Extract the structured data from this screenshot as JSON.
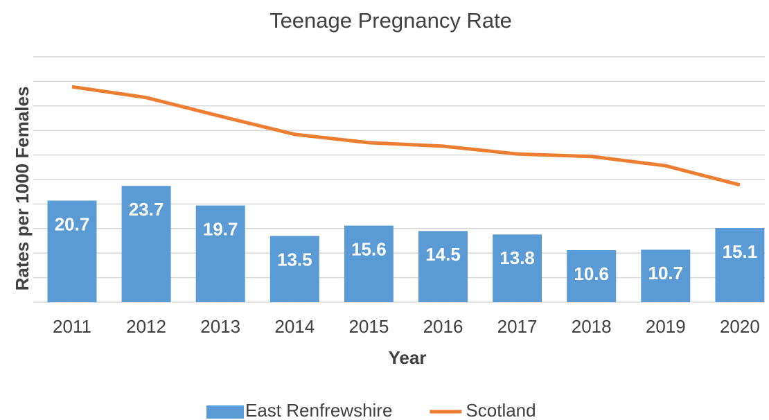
{
  "chart_data": {
    "type": "bar_line",
    "title": "Teenage Pregnancy Rate",
    "xlabel": "Year",
    "ylabel": "Rates per 1000 Females",
    "categories": [
      "2011",
      "2012",
      "2013",
      "2014",
      "2015",
      "2016",
      "2017",
      "2018",
      "2019",
      "2020"
    ],
    "series": [
      {
        "name": "East Renfrewshire",
        "type": "bar",
        "color": "#5b9bd5",
        "values": [
          20.7,
          23.7,
          19.7,
          13.5,
          15.6,
          14.5,
          13.8,
          10.6,
          10.7,
          15.1
        ]
      },
      {
        "name": "Scotland",
        "type": "line",
        "color": "#ed7d31",
        "values": [
          43.9,
          41.7,
          37.9,
          34.2,
          32.5,
          31.8,
          30.2,
          29.7,
          27.8,
          23.9
        ]
      }
    ],
    "ylim": [
      0,
      50
    ],
    "yticks": [
      0,
      5,
      10,
      15,
      20,
      25,
      30,
      35,
      40,
      45,
      50
    ],
    "grid": true,
    "legend": "bottom"
  }
}
